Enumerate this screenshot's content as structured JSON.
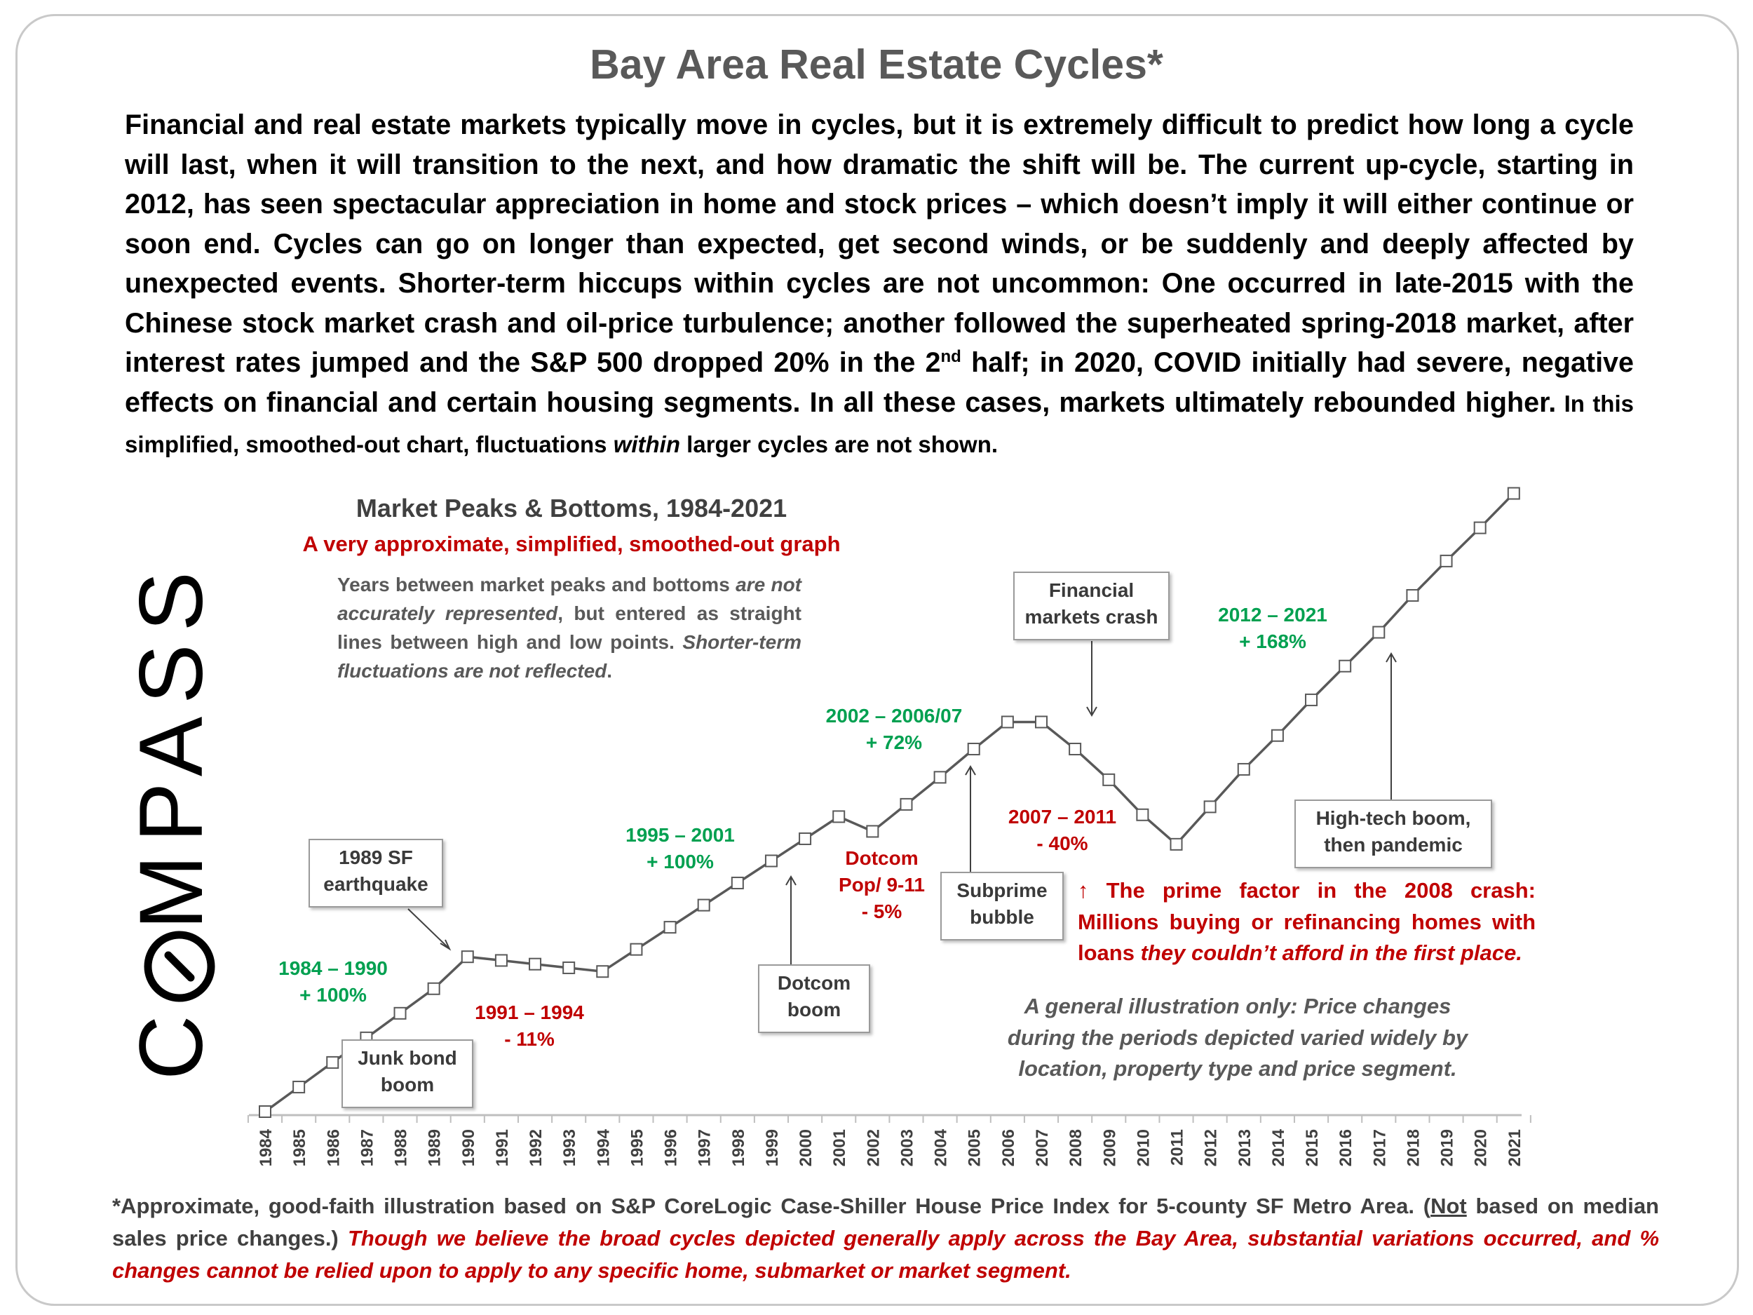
{
  "title": "Bay Area Real Estate Cycles*",
  "intro": {
    "part1": "Financial and real estate markets typically move in cycles, but it is extremely difficult to predict how long a cycle will last, when it will transition to the next, and how dramatic the shift will be. The current up-cycle, starting in 2012, has seen spectacular appreciation in home and stock prices – which doesn’t imply it will either continue or soon end. Cycles can go on longer than expected, get second winds, or be suddenly and deeply affected by unexpected events. Shorter-term hiccups within cycles are not uncommon: One occurred in late-2015 with the Chinese stock market crash and oil-price turbulence; another followed the superheated spring-2018 market, after interest rates jumped and the S&P 500 dropped 20% in the 2",
    "sup": "nd",
    "part2": " half; in 2020, COVID initially had severe, negative effects on financial and certain housing segments. In all these cases, markets ultimately rebounded higher.",
    "small_a": " In this simplified, smoothed-out chart, fluctuations ",
    "small_em": "within",
    "small_b": " larger cycles are not shown."
  },
  "logo": {
    "c": "C",
    "rest": "MPASS"
  },
  "chart_header": {
    "title": "Market Peaks & Bottoms, 1984-2021",
    "subtitle": "A very approximate, simplified, smoothed-out graph",
    "note_a": "Years between market peaks and bottoms ",
    "note_em1": "are not accurately represented",
    "note_b": ", but entered as straight lines between high and low points. ",
    "note_em2": "Shorter-term fluctuations are not reflected",
    "note_c": "."
  },
  "boxes": {
    "earthquake": [
      "1989 SF",
      "earthquake"
    ],
    "junk": [
      "Junk bond",
      "boom"
    ],
    "dotcom": [
      "Dotcom",
      "boom"
    ],
    "subprime": [
      "Subprime",
      "bubble"
    ],
    "financial": [
      "Financial",
      "markets crash"
    ],
    "hightech": [
      "High-tech boom,",
      "then pandemic"
    ]
  },
  "labels": {
    "l1984": [
      "1984 – 1990",
      "+ 100%"
    ],
    "l1991": [
      "1991 – 1994",
      "- 11%"
    ],
    "l1995": [
      "1995 – 2001",
      "+ 100%"
    ],
    "ldotpop": [
      "Dotcom",
      "Pop/ 9-11",
      "- 5%"
    ],
    "l2002": [
      "2002 – 2006/07",
      "+ 72%"
    ],
    "l2007": [
      "2007 – 2011",
      "- 40%"
    ],
    "l2012": [
      "2012 – 2021",
      "+ 168%"
    ]
  },
  "prime": {
    "arrow": "↑",
    "a": " The prime factor in the 2008 crash: Millions buying or refinancing homes with loans ",
    "em": "they couldn’t afford in the first place."
  },
  "illustration": [
    "A general illustration only: Price changes",
    "during the periods depicted varied widely by",
    "location, property type and price segment."
  ],
  "footnote": {
    "a": "*Approximate, good-faith illustration based on S&P CoreLogic Case-Shiller House Price Index for 5-county SF Metro Area. (",
    "u": "Not",
    "b": " based on median sales price changes.) ",
    "ri": "Though we believe the broad cycles depicted generally apply across the Bay Area, substantial variations occurred, and % changes cannot be relied upon to apply to any specific home, submarket or market segment."
  },
  "colors": {
    "line": "#595959",
    "green": "#00a050",
    "red": "#c00000",
    "title": "#595959"
  },
  "chart_data": {
    "type": "line",
    "x": [
      1984,
      1985,
      1986,
      1987,
      1988,
      1989,
      1990,
      1991,
      1992,
      1993,
      1994,
      1995,
      1996,
      1997,
      1998,
      1999,
      2000,
      2001,
      2002,
      2003,
      2004,
      2005,
      2006,
      2007,
      2008,
      2009,
      2010,
      2011,
      2012,
      2013,
      2014,
      2015,
      2016,
      2017,
      2018,
      2019,
      2020,
      2021
    ],
    "tick_labels": [
      "1984",
      "1985",
      "1986",
      "1987",
      "1988",
      "1989",
      "1990",
      "1991",
      "1992",
      "1993",
      "1994",
      "1995",
      "1996",
      "1997",
      "1998",
      "1999",
      "2000",
      "2001",
      "2002",
      "2003",
      "2004",
      "2005",
      "2006",
      "2007",
      "2008",
      "2009",
      "2010",
      "2011",
      "2012",
      "2013",
      "2014",
      "2015",
      "2016",
      "2017",
      "2018",
      "2019",
      "2020",
      "2021"
    ],
    "y": [
      0,
      4,
      8,
      12,
      16,
      20,
      25.2,
      24.6,
      24,
      23.4,
      22.8,
      26.4,
      30,
      33.6,
      37.2,
      40.8,
      44.4,
      48,
      45.6,
      50,
      54.4,
      59,
      63.4,
      63.4,
      59,
      54,
      48.3,
      43.5,
      49.6,
      55.7,
      61.2,
      67,
      72.5,
      78,
      84,
      89.6,
      95,
      100.6
    ],
    "ylim": [
      0,
      101
    ],
    "grid": false,
    "legend": "none"
  }
}
